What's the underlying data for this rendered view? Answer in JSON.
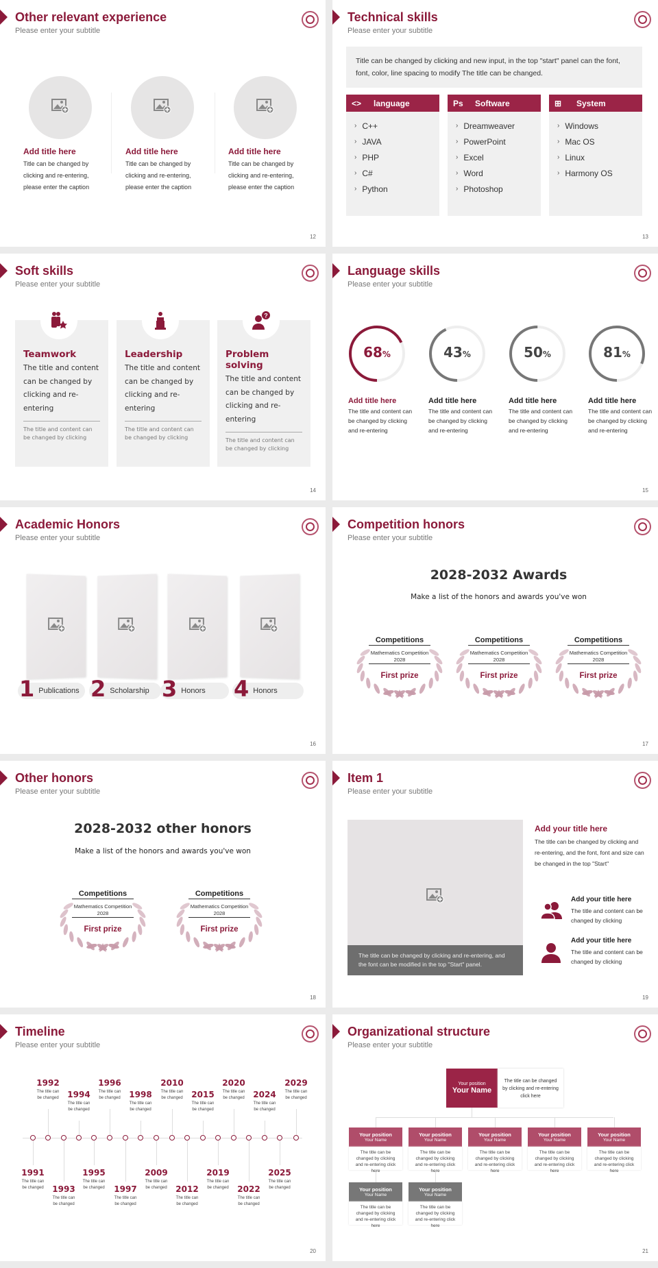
{
  "common": {
    "subtitle": "Please enter your subtitle"
  },
  "colors": {
    "accent": "#8b1a3a",
    "header": "#9b2447",
    "light_accent": "#b5536e",
    "gray": "#777777",
    "panel": "#f0f0f0"
  },
  "slides": {
    "s12": {
      "title": "Other relevant experience",
      "page": "12",
      "items": [
        {
          "title": "Add title here",
          "lines": [
            "Title can be changed by",
            "clicking and re-entering,",
            "please enter the caption"
          ],
          "icon": "image-add-icon"
        },
        {
          "title": "Add title here",
          "lines": [
            "Title can be changed by",
            "clicking and re-entering,",
            "please enter the caption"
          ],
          "icon": "image-add-icon"
        },
        {
          "title": "Add title here",
          "lines": [
            "Title can be changed by",
            "clicking and re-entering,",
            "please enter the caption"
          ],
          "icon": "image-add-icon"
        }
      ]
    },
    "s13": {
      "title": "Technical skills",
      "page": "13",
      "intro": "Title can be changed by clicking and new input, in the top \"start\" panel can the font, font, color, line spacing to modify The title can be changed.",
      "columns": [
        {
          "icon": "code-icon",
          "glyph": "<>",
          "title": "language",
          "items": [
            "C++",
            "JAVA",
            "PHP",
            "C#",
            "Python"
          ]
        },
        {
          "icon": "photoshop-icon",
          "glyph": "Ps",
          "title": "Software",
          "items": [
            "Dreamweaver",
            "PowerPoint",
            "Excel",
            "Word",
            "Photoshop"
          ]
        },
        {
          "icon": "windows-icon",
          "glyph": "⊞",
          "title": "System",
          "items": [
            "Windows",
            "Mac OS",
            "Linux",
            "Harmony OS"
          ]
        }
      ]
    },
    "s14": {
      "title": "Soft skills",
      "page": "14",
      "cards": [
        {
          "icon": "teamwork-icon",
          "title": "Teamwork",
          "text": "The title and content can be changed by clicking and re-entering",
          "note": "The title and content can be changed by clicking"
        },
        {
          "icon": "podium-speaker-icon",
          "title": "Leadership",
          "text": "The title and content can be changed by clicking and re-entering",
          "note": "The title and content can be changed by clicking"
        },
        {
          "icon": "person-question-icon",
          "title": "Problem solving",
          "text": "The title and content can be changed by clicking and re-entering",
          "note": "The title and content can be changed by clicking"
        }
      ]
    },
    "s15": {
      "title": "Language skills",
      "page": "15",
      "items": [
        {
          "value": 68,
          "label": "68",
          "unit": "%",
          "title": "Add title here",
          "text": "The title and content can be changed by clicking and re-entering",
          "color": "#8b1a3a"
        },
        {
          "value": 43,
          "label": "43",
          "unit": "%",
          "title": "Add title here",
          "text": "The title and content can be changed by clicking and re-entering",
          "color": "#777777"
        },
        {
          "value": 50,
          "label": "50",
          "unit": "%",
          "title": "Add title here",
          "text": "The title and content can be changed by clicking and re-entering",
          "color": "#777777"
        },
        {
          "value": 81,
          "label": "81",
          "unit": "%",
          "title": "Add title here",
          "text": "The title and content can be changed by clicking and re-entering",
          "color": "#777777"
        }
      ]
    },
    "s16": {
      "title": "Academic Honors",
      "page": "16",
      "items": [
        {
          "num": "1",
          "label": "Publications"
        },
        {
          "num": "2",
          "label": "Scholarship"
        },
        {
          "num": "3",
          "label": "Honors"
        },
        {
          "num": "4",
          "label": "Honors"
        }
      ]
    },
    "s17": {
      "title": "Competition honors",
      "page": "17",
      "heading": "2028-2032 Awards",
      "sub": "Make a list of the honors and awards you've won",
      "awards": [
        {
          "title": "Competitions",
          "event": "Mathematics Competition",
          "year": "2028",
          "prize": "First prize"
        },
        {
          "title": "Competitions",
          "event": "Mathematics Competition",
          "year": "2028",
          "prize": "First prize"
        },
        {
          "title": "Competitions",
          "event": "Mathematics Competition",
          "year": "2028",
          "prize": "First prize"
        }
      ]
    },
    "s18": {
      "title": "Other honors",
      "page": "18",
      "heading": "2028-2032 other honors",
      "sub": "Make a list of the honors and awards you've won",
      "awards": [
        {
          "title": "Competitions",
          "event": "Mathematics Competition",
          "year": "2028",
          "prize": "First prize"
        },
        {
          "title": "Competitions",
          "event": "Mathematics Competition",
          "year": "2028",
          "prize": "First prize"
        }
      ]
    },
    "s19": {
      "title": "Item 1",
      "page": "19",
      "caption": "The title can be changed by clicking and re-entering, and the font can be modified in the top \"Start\" panel.",
      "main_title": "Add your title here",
      "main_text": "The title can be changed by clicking and re-entering, and the font, font and size can be changed in the top \"Start\"",
      "points": [
        {
          "icon": "users-icon",
          "title": "Add your title here",
          "text": "The title and content can be changed by clicking"
        },
        {
          "icon": "user-icon",
          "title": "Add your title here",
          "text": "The title and content can be changed by clicking"
        }
      ]
    },
    "s20": {
      "title": "Timeline",
      "page": "20",
      "events": [
        {
          "year": "1991",
          "text": "The title can be changed"
        },
        {
          "year": "1992",
          "text": "The title can be changed"
        },
        {
          "year": "1993",
          "text": "The title can be changed"
        },
        {
          "year": "1994",
          "text": "The title can be changed"
        },
        {
          "year": "1995",
          "text": "The title can be changed"
        },
        {
          "year": "1996",
          "text": "The title can be changed"
        },
        {
          "year": "1997",
          "text": "The title can be changed"
        },
        {
          "year": "1998",
          "text": "The title can be changed"
        },
        {
          "year": "2009",
          "text": "The title can be changed"
        },
        {
          "year": "2010",
          "text": "The title can be changed"
        },
        {
          "year": "2012",
          "text": "The title can be changed"
        },
        {
          "year": "2015",
          "text": "The title can be changed"
        },
        {
          "year": "2019",
          "text": "The title can be changed"
        },
        {
          "year": "2020",
          "text": "The title can be changed"
        },
        {
          "year": "2022",
          "text": "The title can be changed"
        },
        {
          "year": "2024",
          "text": "The title can be changed"
        },
        {
          "year": "2025",
          "text": "The title can be changed"
        },
        {
          "year": "2029",
          "text": "The title can be changed"
        }
      ]
    },
    "s21": {
      "title": "Organizational structure",
      "page": "21",
      "top": {
        "position": "Your position",
        "name": "Your Name",
        "text": "The title can be changed by clicking and re-entering click here"
      },
      "row1": [
        {
          "position": "Your position",
          "name": "Your Name",
          "text": "The title can be changed by clicking and re-entering click here"
        },
        {
          "position": "Your position",
          "name": "Your Name",
          "text": "The title can be changed by clicking and re-entering click here"
        },
        {
          "position": "Your position",
          "name": "Your Name",
          "text": "The title can be changed by clicking and re-entering click here"
        },
        {
          "position": "Your position",
          "name": "Your Name",
          "text": "The title can be changed by clicking and re-entering click here"
        },
        {
          "position": "Your position",
          "name": "Your Name",
          "text": "The title can be changed by clicking and re-entering click here"
        }
      ],
      "row2": [
        {
          "position": "Your position",
          "name": "Your Name",
          "text": "The title can be changed by clicking and re-entering click here"
        },
        {
          "position": "Your position",
          "name": "Your Name",
          "text": "The title can be changed by clicking and re-entering click here"
        }
      ]
    }
  }
}
